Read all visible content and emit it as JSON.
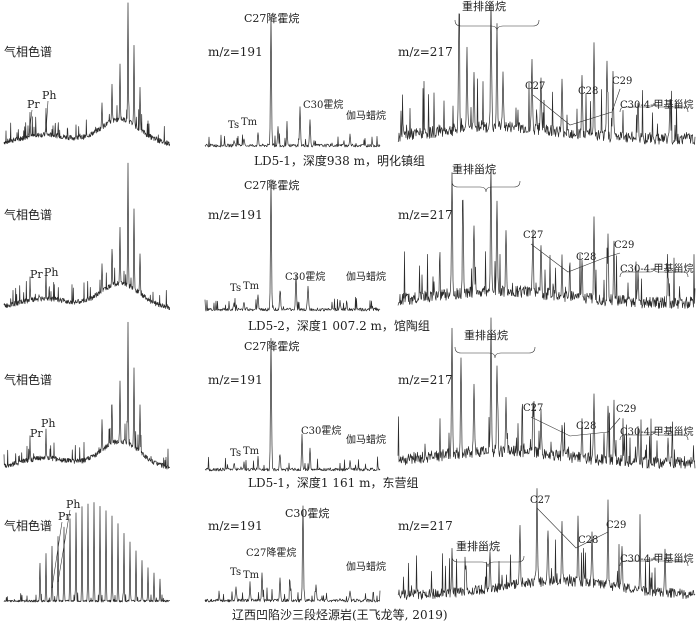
{
  "chart_data": {
    "type": "line",
    "panel_titles": {
      "gc": "气相色谱",
      "m191": "m/z=191",
      "m217": "m/z=217"
    },
    "rows": [
      {
        "caption": "LD5-1，深度938 m，明化镇组",
        "gc": {
          "labels": [
            "Pr",
            "Ph"
          ]
        },
        "m191": {
          "labels": [
            "C30霍烷",
            "Ts",
            "Tm",
            "C30霍烷",
            "伽马蜡烷"
          ],
          "display": {
            "c27_hopane": "C27降霍烷",
            "c30_hopane": "C30霍烷"
          }
        },
        "m217": {
          "labels": [
            "重排甾烷",
            "C27",
            "C28",
            "C29",
            "C30-4-甲基甾烷"
          ]
        }
      },
      {
        "caption": "LD5-2，深度1 007.2 m，馆陶组",
        "gc": {
          "labels": [
            "Pr",
            "Ph"
          ]
        },
        "m191": {
          "labels": [
            "C27降霍烷",
            "Ts",
            "Tm",
            "C30霍烷",
            "伽马蜡烷"
          ]
        },
        "m217": {
          "labels": [
            "重排甾烷",
            "C27",
            "C28",
            "C29",
            "C30-4-甲基甾烷"
          ]
        }
      },
      {
        "caption": "LD5-1，深度1 161 m，东营组",
        "gc": {
          "labels": [
            "Pr",
            "Ph"
          ]
        },
        "m191": {
          "labels": [
            "C27降霍烷",
            "Ts",
            "Tm",
            "C30霍烷",
            "伽马蜡烷"
          ]
        },
        "m217": {
          "labels": [
            "重排甾烷",
            "C27",
            "C28",
            "C29",
            "C30-4-甲基甾烷"
          ]
        }
      },
      {
        "caption": "辽西凹陷沙三段烃源岩(王飞龙等, 2019)",
        "gc": {
          "labels": [
            "Pr",
            "Ph"
          ]
        },
        "m191": {
          "labels": [
            "C30霍烷",
            "Ts",
            "Tm",
            "C27降霍烷",
            "伽马蜡烷"
          ]
        },
        "m217": {
          "labels": [
            "重排甾烷",
            "C27",
            "C28",
            "C29",
            "C30-4-甲基甾烷"
          ]
        }
      }
    ],
    "text": {
      "hopane_c27": "C27降霍烷",
      "hopane_c30": "C30霍烷",
      "gammacerane": "伽马蜡烷",
      "rearranged_sterane": "重排甾烷",
      "methyl_sterane": "C30-4-甲基甾烷",
      "pr": "Pr",
      "ph": "Ph",
      "ts": "Ts",
      "tm": "Tm",
      "c27": "C27",
      "c28": "C28",
      "c29": "C29"
    }
  }
}
